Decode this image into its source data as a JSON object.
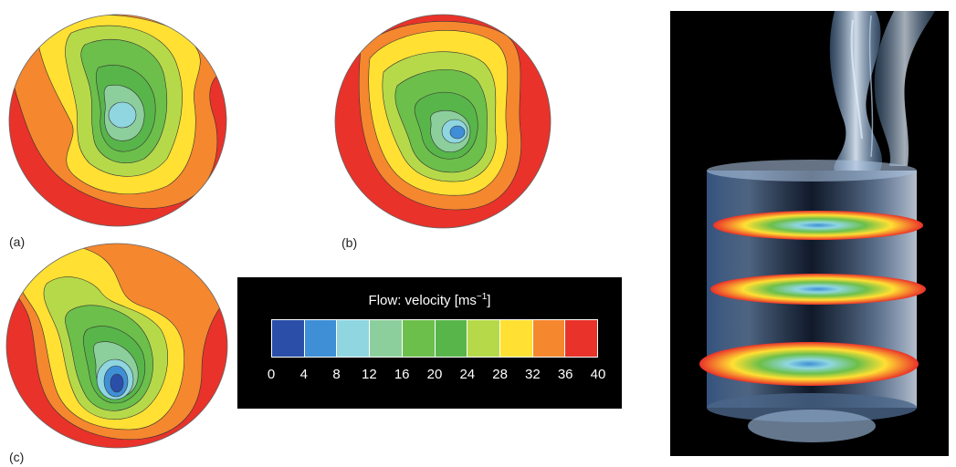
{
  "panels": [
    {
      "label": "(a)"
    },
    {
      "label": "(b)"
    },
    {
      "label": "(c)"
    }
  ],
  "legend": {
    "title_prefix": "Flow: velocity [ms",
    "title_exp": "−1",
    "title_suffix": "]",
    "colors": [
      "#2b4fa8",
      "#3e8fd6",
      "#8fd6e0",
      "#8ccf9c",
      "#6cbf4a",
      "#58b54a",
      "#b6d94a",
      "#ffe033",
      "#f5872e",
      "#e8322a"
    ],
    "ticks": [
      "0",
      "4",
      "8",
      "12",
      "16",
      "20",
      "24",
      "28",
      "32",
      "36",
      "40"
    ]
  },
  "palette": {
    "red": "#e8322a",
    "orange": "#f5872e",
    "yellow": "#ffe033",
    "lime": "#b6d94a",
    "green": "#6cbf4a",
    "aqua_green": "#8ccf9c",
    "cyan": "#8fd6e0",
    "blue": "#3e8fd6",
    "dark_blue": "#2b4fa8"
  }
}
